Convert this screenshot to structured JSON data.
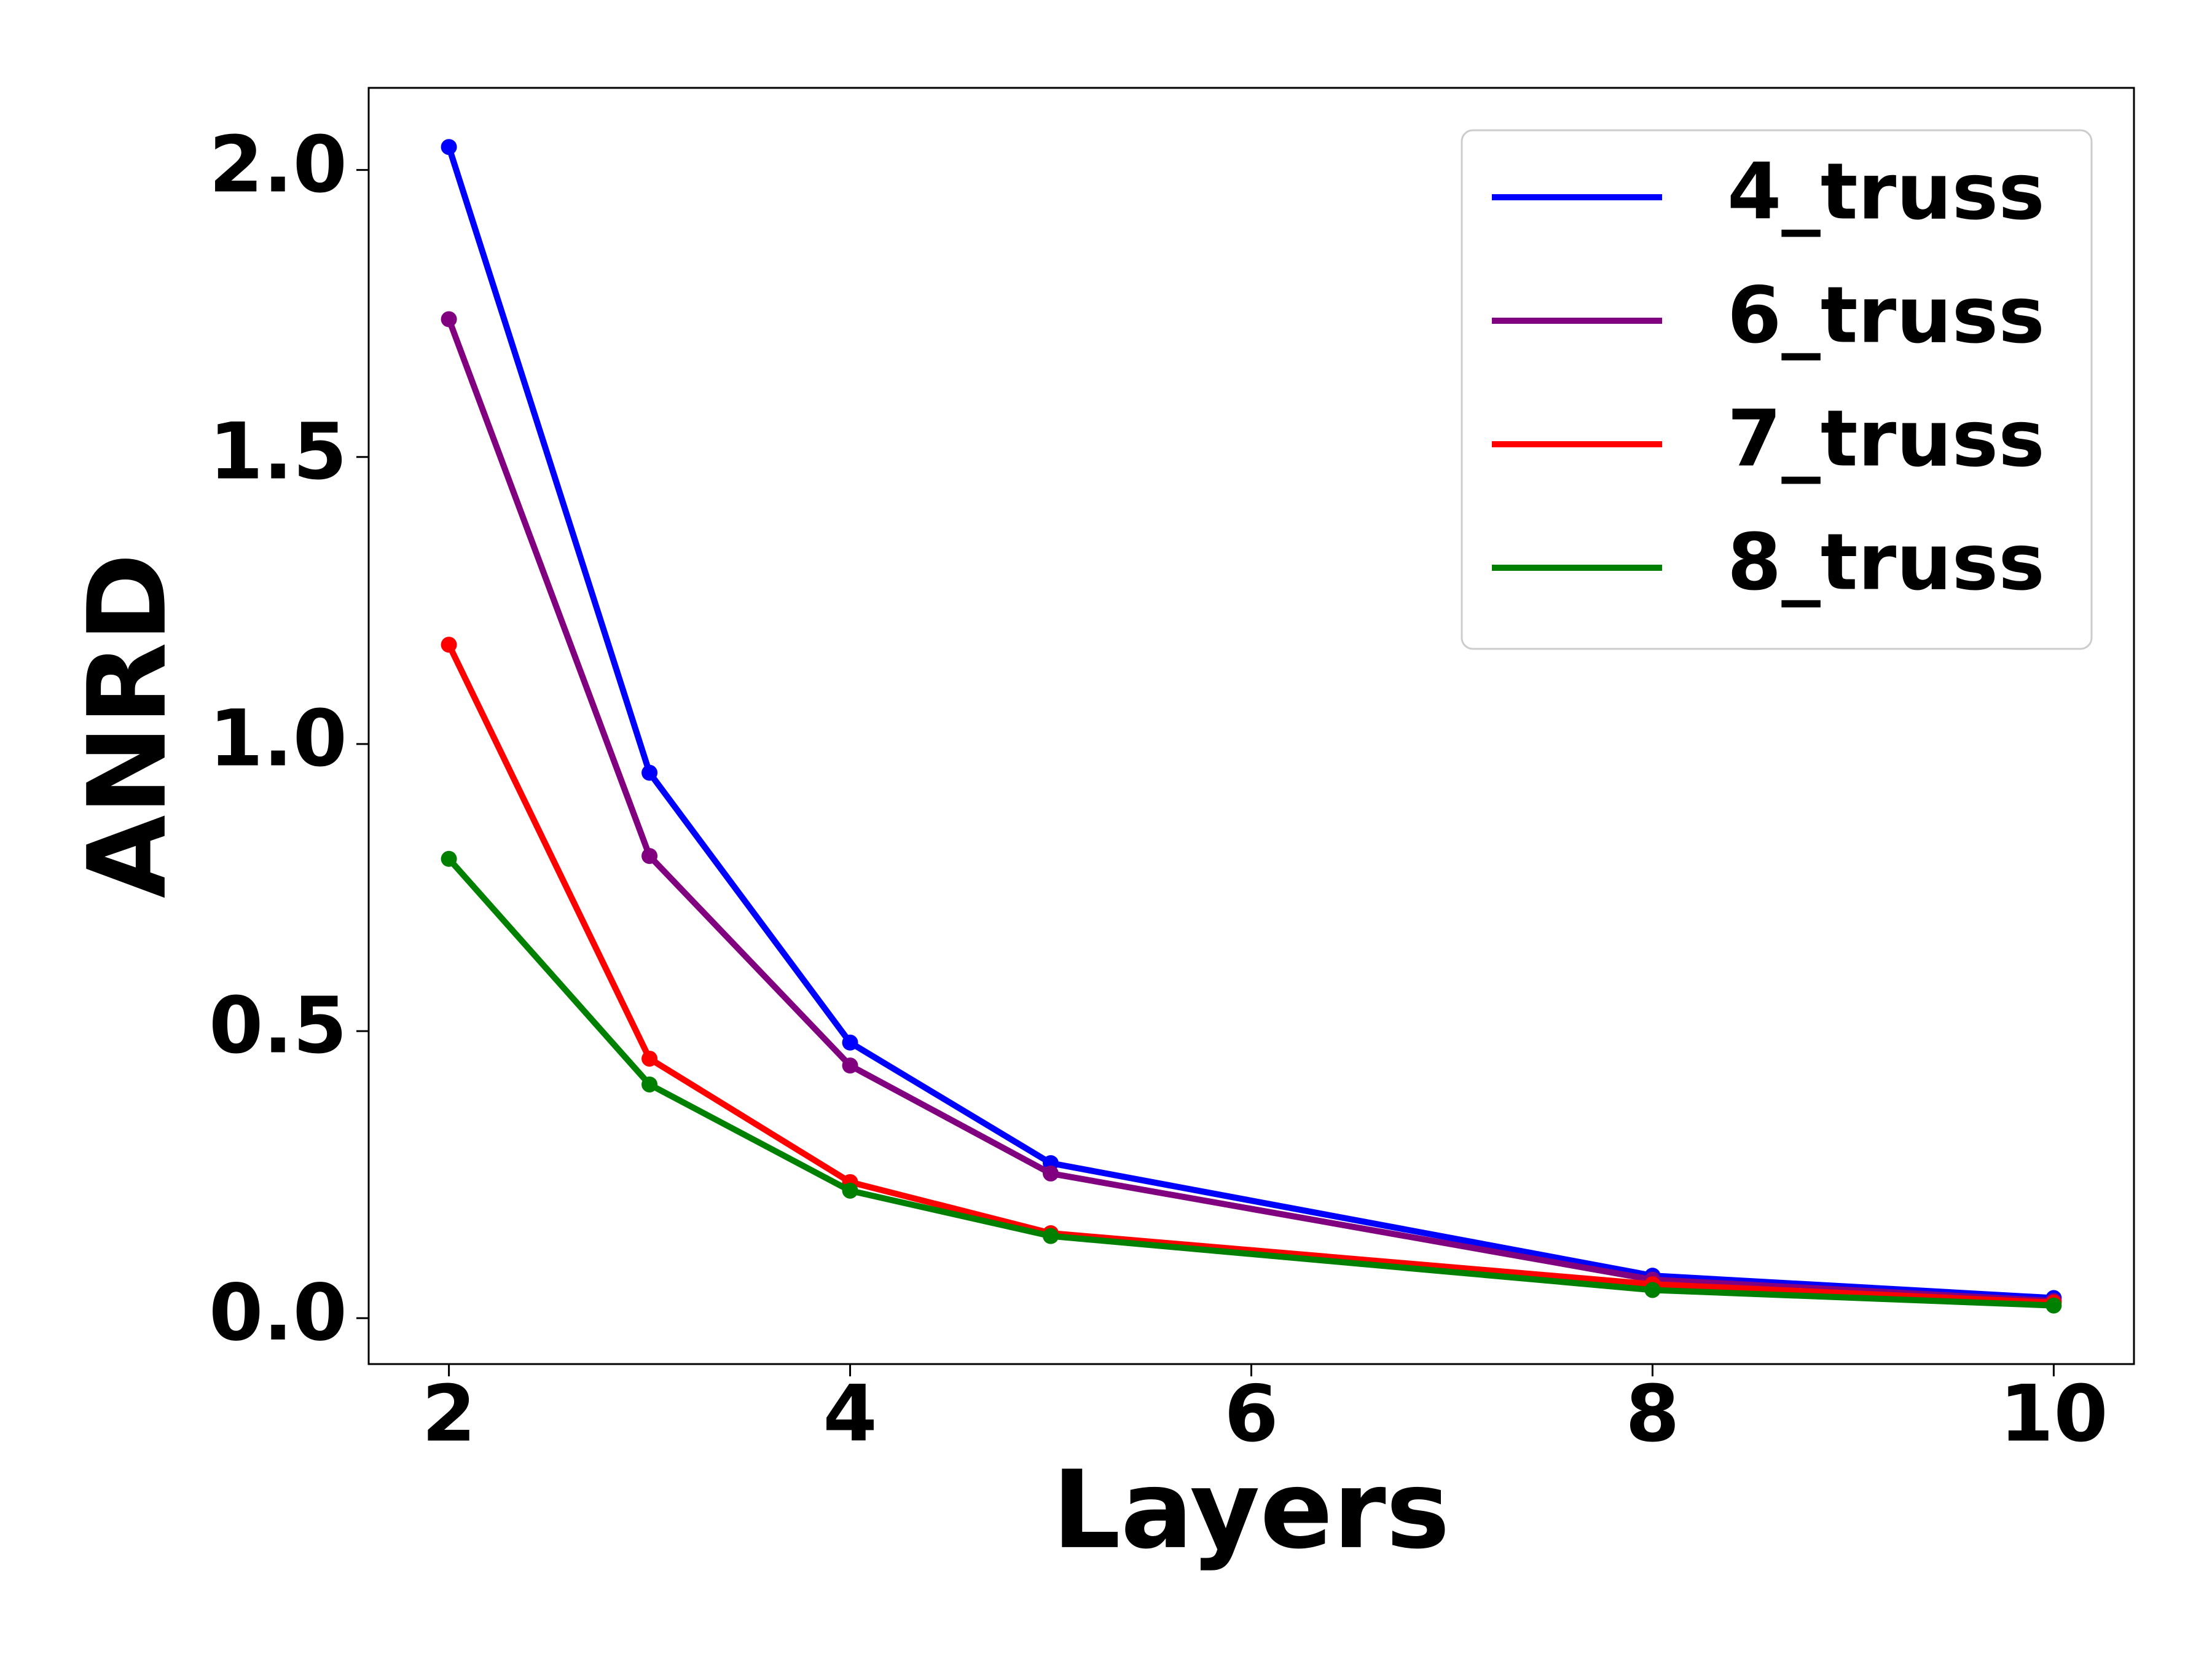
{
  "chart_data": {
    "type": "line",
    "x_label": "Layers",
    "y_label": "ANRD",
    "x": [
      2,
      3,
      4,
      5,
      8,
      10
    ],
    "series": [
      {
        "name": "4_truss",
        "color": "#0000ff",
        "values": [
          2.04,
          0.95,
          0.48,
          0.27,
          0.074,
          0.035
        ]
      },
      {
        "name": "6_truss",
        "color": "#800080",
        "values": [
          1.74,
          0.805,
          0.44,
          0.252,
          0.067,
          0.03
        ]
      },
      {
        "name": "7_truss",
        "color": "#ff0000",
        "values": [
          1.173,
          0.452,
          0.237,
          0.148,
          0.059,
          0.027
        ]
      },
      {
        "name": "8_truss",
        "color": "#008000",
        "values": [
          0.8,
          0.407,
          0.222,
          0.143,
          0.049,
          0.022
        ]
      }
    ],
    "xlim": [
      1.6,
      10.4
    ],
    "xticks": [
      2,
      4,
      6,
      8,
      10
    ],
    "ylim": [
      -0.08,
      2.143
    ],
    "yticks": [
      {
        "value": 0,
        "label": "0.0"
      },
      {
        "value": 0.5,
        "label": "0.5"
      },
      {
        "value": 1,
        "label": "1.0"
      },
      {
        "value": 1.5,
        "label": "1.5"
      },
      {
        "value": 2,
        "label": "2.0"
      }
    ],
    "legend": "upper right",
    "grid": false
  }
}
